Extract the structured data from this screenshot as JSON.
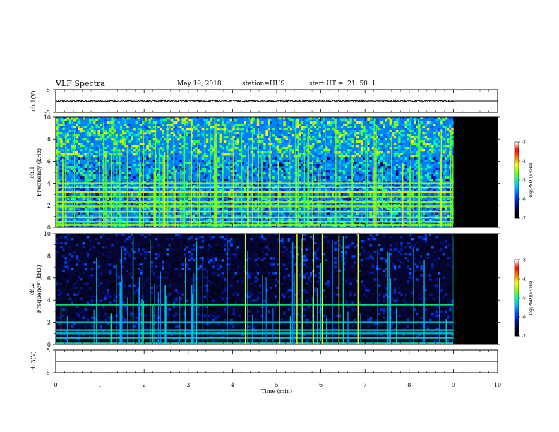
{
  "header": {
    "title": "VLF Spectra",
    "date": "May 19, 2018",
    "station": "station=HUS",
    "start_ut": "start UT =  21: 50: 1"
  },
  "colors": {
    "spectrogram_palette": [
      "#000000",
      "#050530",
      "#0018a8",
      "#0050ff",
      "#00b4ff",
      "#00ff9c",
      "#7cff00",
      "#ffff00",
      "#ff7800",
      "#ff0000",
      "#ffffff"
    ],
    "no_data": "#000000",
    "waveform": "#000000"
  },
  "chart_data": [
    {
      "id": "ch1_waveform",
      "type": "line",
      "ylabel": "ch.1(V)",
      "ylim": [
        -5,
        5
      ],
      "yticks": [
        "5",
        "-5"
      ],
      "xlim": [
        0,
        10
      ],
      "series": [
        {
          "amplitude": 0.5,
          "x_range": [
            0,
            9
          ],
          "after_x9_value": 0
        }
      ]
    },
    {
      "id": "ch1_spectrogram",
      "type": "heatmap",
      "ylabel": "ch.1\nFrequency (kHz)",
      "ylim": [
        0,
        10
      ],
      "yticks": [
        "0",
        "2",
        "4",
        "6",
        "8",
        "10"
      ],
      "xlim": [
        0,
        10
      ],
      "data_extent_min": [
        0,
        9
      ],
      "colorbar": {
        "label": "log(PSD)(V²/Hz)",
        "range": [
          -7,
          -3
        ],
        "ticks": [
          "-3",
          "-4",
          "-5",
          "-6",
          "-7"
        ]
      },
      "bands_khz": [
        0.2,
        0.5,
        0.9,
        1.4,
        1.9,
        2.3,
        2.8,
        3.2,
        3.6,
        4.0
      ],
      "background_level": -5.6
    },
    {
      "id": "ch2_spectrogram",
      "type": "heatmap",
      "ylabel": "ch.2\nFrequency (kHz)",
      "ylim": [
        0,
        10
      ],
      "yticks": [
        "0",
        "2",
        "4",
        "6",
        "8",
        "10"
      ],
      "xlim": [
        0,
        10
      ],
      "data_extent_min": [
        0,
        9
      ],
      "colorbar": {
        "label": "log(PSD)(V²/Hz)",
        "range": [
          -7,
          -3
        ],
        "ticks": [
          "-3",
          "-4",
          "-5",
          "-6",
          "-7"
        ]
      },
      "bands_khz": [
        0.1,
        0.6,
        1.0,
        1.3,
        2.0,
        3.6
      ],
      "strong_impulses_min": [
        4.28,
        5.05,
        5.45,
        5.58,
        5.82,
        6.02,
        6.4,
        6.83
      ],
      "background_level": -6.6
    },
    {
      "id": "ch3_waveform",
      "type": "line",
      "ylabel": "ch.3(V)",
      "ylim": [
        -5,
        5
      ],
      "yticks": [
        "5",
        "-5"
      ],
      "xlim": [
        0,
        10
      ],
      "series": [
        {
          "value": 0,
          "x_range": [
            0,
            10
          ]
        }
      ]
    },
    {
      "id": "time_axis",
      "type": "axis",
      "xlabel": "Time (min)",
      "xticks": [
        "0",
        "1",
        "2",
        "3",
        "4",
        "5",
        "6",
        "7",
        "8",
        "9",
        "10"
      ]
    }
  ]
}
